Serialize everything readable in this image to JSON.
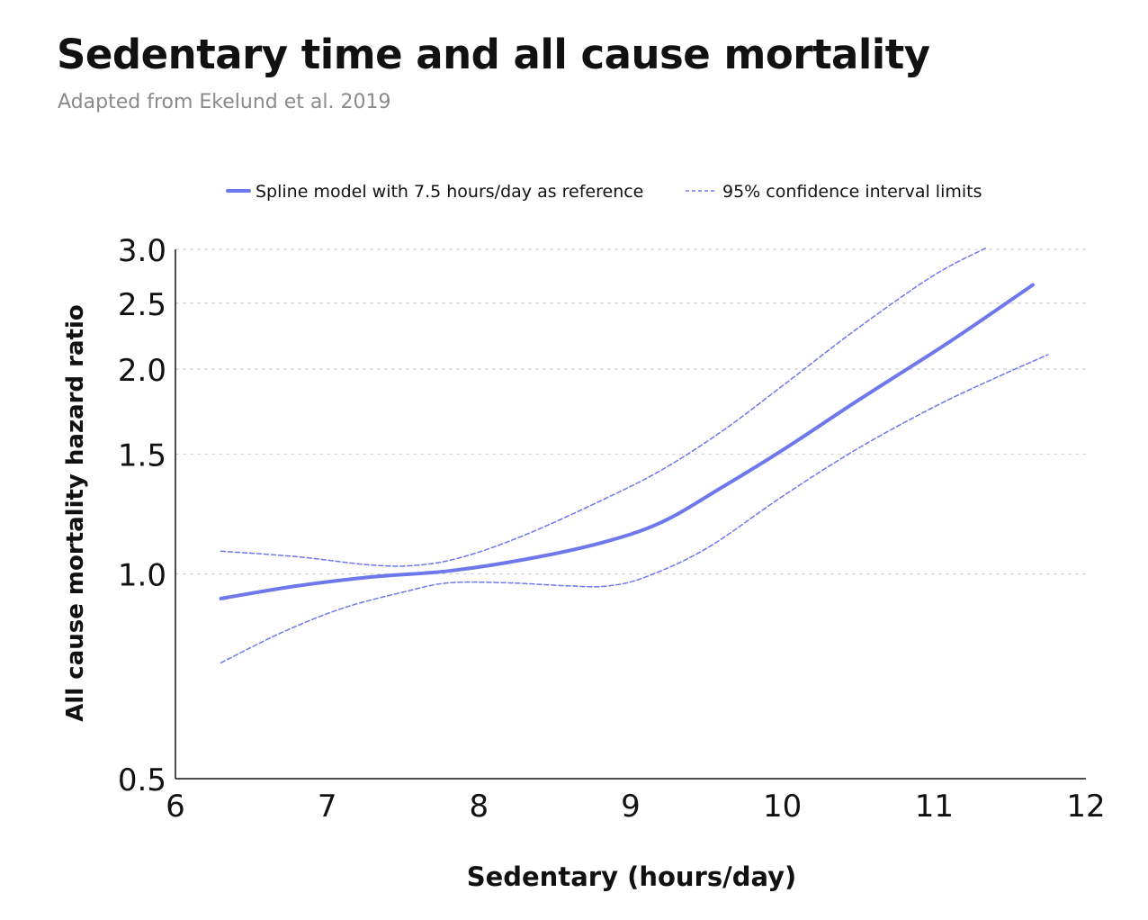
{
  "chart_data": {
    "type": "line",
    "title": "Sedentary time and all cause mortality",
    "subtitle": "Adapted from Ekelund et al. 2019",
    "xlabel": "Sedentary (hours/day)",
    "ylabel": "All cause mortality hazard ratio",
    "xlim": [
      6,
      12
    ],
    "ylim": [
      0.5,
      3.0
    ],
    "y_scale": "log",
    "grid": "horizontal dashed",
    "legend_position": "top",
    "x_ticks": [
      "6",
      "7",
      "8",
      "9",
      "10",
      "11",
      "12"
    ],
    "y_ticks": [
      "0.5",
      "1.0",
      "1.5",
      "2.0",
      "2.5",
      "3.0"
    ],
    "series": [
      {
        "name": "Spline model with 7.5 hours/day as reference",
        "style": "solid",
        "color": "#6e78ec",
        "x": [
          6.3,
          6.8,
          7.3,
          7.8,
          8.3,
          8.8,
          9.2,
          9.6,
          10.0,
          10.5,
          11.0,
          11.3,
          11.65
        ],
        "y": [
          0.92,
          0.96,
          0.99,
          1.01,
          1.05,
          1.11,
          1.19,
          1.34,
          1.52,
          1.8,
          2.12,
          2.35,
          2.66
        ]
      },
      {
        "name": "95% confidence interval limits",
        "style": "dashed",
        "color": "#6e78ec",
        "x": [
          6.3,
          6.8,
          7.3,
          7.6,
          7.9,
          8.3,
          8.8,
          9.2,
          9.6,
          10.0,
          10.5,
          11.0,
          11.35
        ],
        "y": [
          1.08,
          1.06,
          1.03,
          1.03,
          1.06,
          1.14,
          1.28,
          1.42,
          1.62,
          1.89,
          2.3,
          2.75,
          3.02
        ]
      },
      {
        "name": "95% confidence interval limits",
        "style": "dashed",
        "color": "#6e78ec",
        "x": [
          6.3,
          6.7,
          7.1,
          7.5,
          7.8,
          8.2,
          8.6,
          8.85,
          9.1,
          9.5,
          10.0,
          10.5,
          11.0,
          11.4,
          11.75
        ],
        "y": [
          0.74,
          0.82,
          0.89,
          0.94,
          0.97,
          0.97,
          0.96,
          0.96,
          0.99,
          1.09,
          1.3,
          1.53,
          1.76,
          1.94,
          2.1
        ]
      }
    ]
  }
}
